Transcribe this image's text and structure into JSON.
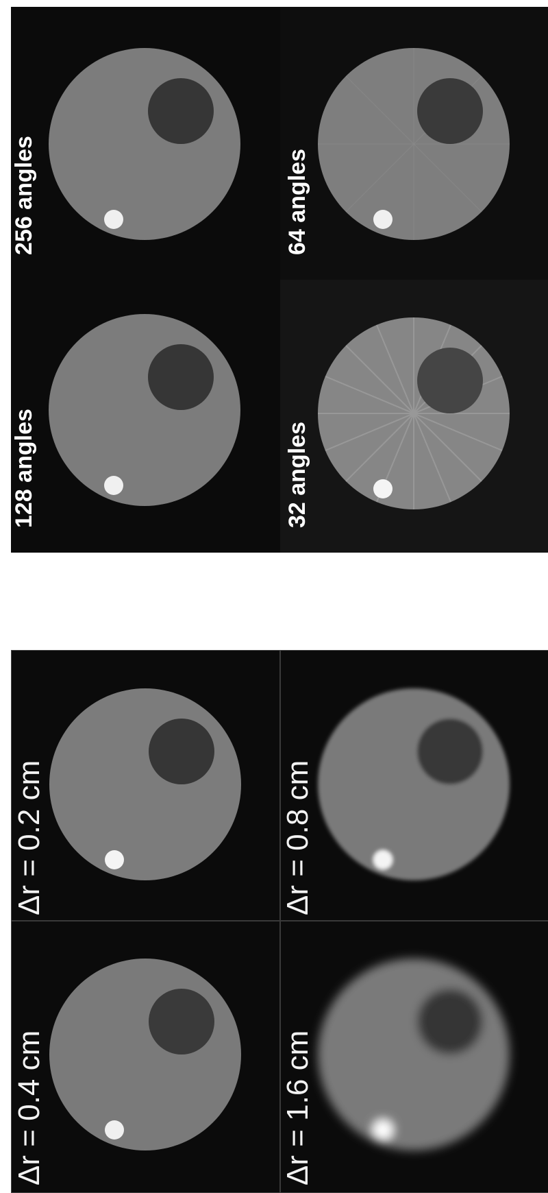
{
  "top_panels": [
    {
      "label": "256 angles",
      "artifact": "faint"
    },
    {
      "label": "128 angles",
      "artifact": "faint"
    },
    {
      "label": "64 angles",
      "artifact": "moderate"
    },
    {
      "label": "32 angles",
      "artifact": "strong"
    }
  ],
  "bottom_panels": [
    {
      "label": "Δr = 0.2 cm",
      "blur": "none"
    },
    {
      "label": "Δr = 0.4 cm",
      "blur": "slight"
    },
    {
      "label": "Δr = 0.8 cm",
      "blur": "moderate"
    },
    {
      "label": "Δr = 1.6 cm",
      "blur": "strong"
    }
  ],
  "colors": {
    "background": "#0b0b0b",
    "phantom_disc": "#7a7a7a",
    "cold_lesion": "#3c3c3c",
    "hot_spot": "#f4f4f4"
  }
}
